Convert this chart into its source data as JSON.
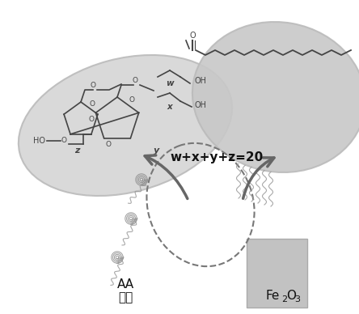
{
  "bg_color": "#ffffff",
  "label_AA": "AA",
  "label_yousu": "油酸",
  "label_equation": "w+x+y+z=20",
  "blob_left_color": "#d0d0d0",
  "blob_right_color": "#c8c8c8",
  "arrow_color": "#888888",
  "mol_color": "#444444",
  "dashed_color": "#777777",
  "fe_color": "#c0c0c0"
}
